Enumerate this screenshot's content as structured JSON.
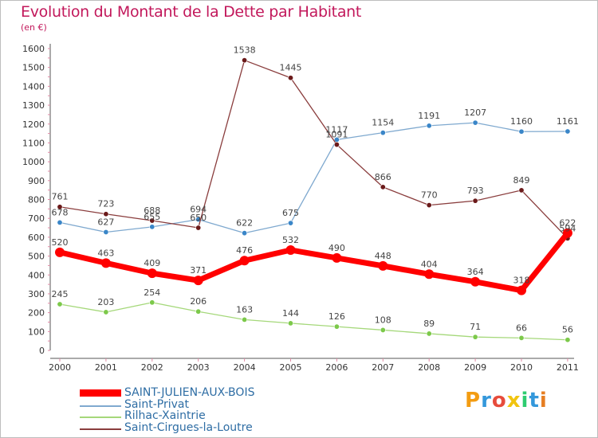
{
  "title": "Evolution du Montant de la Dette par Habitant",
  "subtitle": "(en €)",
  "logo": {
    "text": "Proxiti",
    "letters": [
      {
        "ch": "P",
        "color": "#f39c12"
      },
      {
        "ch": "r",
        "color": "#3498db"
      },
      {
        "ch": "o",
        "color": "#e74c3c"
      },
      {
        "ch": "x",
        "color": "#f1c40f"
      },
      {
        "ch": "i",
        "color": "#2ecc71"
      },
      {
        "ch": "t",
        "color": "#3498db"
      },
      {
        "ch": "i",
        "color": "#e67e22"
      }
    ]
  },
  "chart_data": {
    "type": "line",
    "title": "Evolution du Montant de la Dette par Habitant",
    "subtitle": "(en €)",
    "categories": [
      "2000",
      "2001",
      "2002",
      "2003",
      "2004",
      "2005",
      "2006",
      "2007",
      "2008",
      "2009",
      "2010",
      "2011"
    ],
    "y_ticks": [
      0,
      100,
      200,
      300,
      400,
      500,
      600,
      700,
      800,
      900,
      1000,
      1100,
      1200,
      1300,
      1400,
      1500,
      1600
    ],
    "ylim": [
      0,
      1600
    ],
    "grid": false,
    "legend_position": "bottom-left",
    "series": [
      {
        "name": "SAINT-JULIEN-AUX-BOIS",
        "color": "#ff0000",
        "marker": "#ff0000",
        "highlight": true,
        "values": [
          520,
          463,
          409,
          371,
          476,
          532,
          490,
          448,
          404,
          364,
          318,
          622
        ]
      },
      {
        "name": "Saint-Privat",
        "color": "#7fa9cf",
        "marker": "#3a86c8",
        "highlight": false,
        "values": [
          678,
          627,
          655,
          694,
          622,
          675,
          1117,
          1154,
          1191,
          1207,
          1160,
          1161
        ]
      },
      {
        "name": "Rilhac-Xaintrie",
        "color": "#a5d87a",
        "marker": "#7cc94a",
        "highlight": false,
        "values": [
          245,
          203,
          254,
          206,
          163,
          144,
          126,
          108,
          89,
          71,
          66,
          56
        ]
      },
      {
        "name": "Saint-Cirgues-la-Loutre",
        "color": "#8a3d3d",
        "marker": "#6b1a1a",
        "highlight": false,
        "values": [
          761,
          723,
          688,
          650,
          1538,
          1445,
          1091,
          866,
          770,
          793,
          849,
          594
        ]
      }
    ]
  }
}
